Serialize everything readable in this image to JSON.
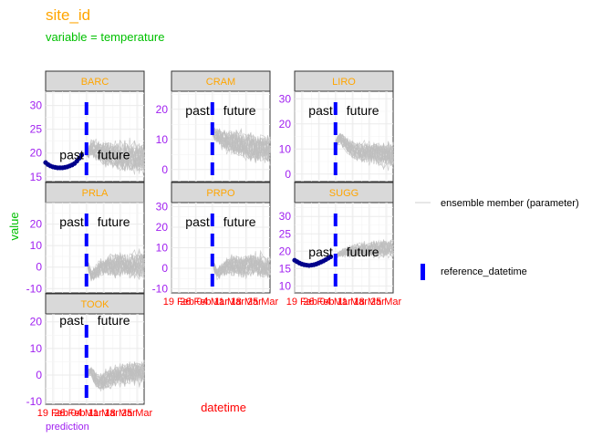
{
  "chart_data": {
    "type": "line",
    "title": "site_id",
    "subtitle": "variable = temperature",
    "xlabel": "datetime",
    "ylabel": "value",
    "caption": "prediction",
    "x_ticks": [
      "19 Feb",
      "26 Feb",
      "04 Mar",
      "11 Mar",
      "18 Mar",
      "25 Mar"
    ],
    "x_range": [
      "2024-02-16",
      "2024-03-28"
    ],
    "reference_datetime": "2024-03-04",
    "annotations": {
      "past": "past",
      "future": "future"
    },
    "colors": {
      "title": "#ffa500",
      "subtitle": "#00c000",
      "strip_text": "#ffa500",
      "y_tick": "#a020f0",
      "x_tick": "#ff0000",
      "ensemble": "#bfbfbf",
      "observation": "#00008b",
      "reference": "#0000ff"
    },
    "legend": {
      "placement": "right",
      "entries": [
        {
          "label": "ensemble member (parameter)",
          "kind": "line",
          "color": "#bfbfbf"
        },
        {
          "label": "reference_datetime",
          "kind": "dashed-bar",
          "color": "#0000ff"
        }
      ]
    },
    "panels": [
      {
        "site": "BARC",
        "ylim": [
          14,
          33
        ],
        "yticks": [
          15,
          20,
          25,
          30
        ],
        "observed": [
          [
            0,
            18.0
          ],
          [
            1,
            17.6
          ],
          [
            2,
            17.3
          ],
          [
            3,
            17.1
          ],
          [
            4,
            17.0
          ],
          [
            5,
            16.9
          ],
          [
            6,
            16.9
          ],
          [
            7,
            16.9
          ],
          [
            8,
            17.0
          ],
          [
            9,
            17.1
          ],
          [
            10,
            17.3
          ],
          [
            11,
            17.5
          ],
          [
            12,
            17.8
          ],
          [
            13,
            18.3
          ],
          [
            14,
            18.9
          ],
          [
            15,
            19.6
          ]
        ],
        "forecast": {
          "start": 19.5,
          "mean": [
            19.5,
            21.2,
            20.6,
            20.1,
            19.8,
            19.6,
            19.4,
            19.3,
            19.2,
            19.1,
            19.0,
            19.0,
            18.9
          ],
          "spread": [
            0.5,
            1.8,
            2.4,
            2.8,
            3.0,
            3.2,
            3.4,
            3.5,
            3.6,
            3.6,
            3.7,
            3.7,
            3.8
          ]
        }
      },
      {
        "site": "CRAM",
        "ylim": [
          -4,
          26
        ],
        "yticks": [
          0,
          10,
          20
        ],
        "observed": [],
        "forecast": {
          "start": 12,
          "mean": [
            12,
            11.5,
            10.5,
            9.5,
            9.0,
            8.5,
            8.0,
            7.8,
            7.5,
            7.5,
            7.2,
            7.0,
            6.8
          ],
          "spread": [
            1.0,
            2.5,
            3.5,
            4.0,
            4.5,
            4.8,
            5.0,
            5.2,
            5.3,
            5.4,
            5.5,
            5.5,
            5.6
          ]
        }
      },
      {
        "site": "LIRO",
        "ylim": [
          -3,
          33
        ],
        "yticks": [
          0,
          10,
          20,
          30
        ],
        "observed": [],
        "forecast": {
          "start": 13,
          "mean": [
            13,
            14,
            12,
            10.5,
            9.5,
            9,
            8.5,
            8.2,
            8,
            7.8,
            7.6,
            7.5,
            7.4
          ],
          "spread": [
            1.0,
            2.5,
            3.5,
            4.0,
            4.5,
            4.8,
            5.0,
            5.2,
            5.3,
            5.4,
            5.5,
            5.5,
            5.6
          ]
        }
      },
      {
        "site": "PRLA",
        "ylim": [
          -12,
          30
        ],
        "yticks": [
          -10,
          0,
          10,
          20
        ],
        "observed": [],
        "forecast": {
          "start": 3,
          "mean": [
            3,
            -4,
            -2,
            0,
            0.5,
            1,
            0.8,
            1,
            1.2,
            1,
            1,
            0.8,
            1
          ],
          "spread": [
            1.0,
            3.0,
            4.0,
            5.0,
            5.5,
            6.0,
            6.2,
            6.4,
            6.5,
            6.6,
            6.7,
            6.8,
            6.8
          ]
        }
      },
      {
        "site": "PRPO",
        "ylim": [
          -12,
          32
        ],
        "yticks": [
          -10,
          0,
          10,
          20,
          30
        ],
        "observed": [],
        "forecast": {
          "start": 3,
          "mean": [
            3,
            -3,
            -1,
            0,
            1,
            1,
            0.5,
            1,
            1.2,
            1,
            1,
            0.8,
            1
          ],
          "spread": [
            1.0,
            3.0,
            4.0,
            5.0,
            5.5,
            6.0,
            6.2,
            6.4,
            6.5,
            6.6,
            6.7,
            6.8,
            6.8
          ]
        }
      },
      {
        "site": "SUGG",
        "ylim": [
          8,
          34
        ],
        "yticks": [
          10,
          15,
          20,
          25,
          30
        ],
        "observed": [
          [
            0,
            17.4
          ],
          [
            1,
            17.0
          ],
          [
            2,
            16.6
          ],
          [
            3,
            16.3
          ],
          [
            4,
            16.1
          ],
          [
            5,
            16.0
          ],
          [
            6,
            15.9
          ],
          [
            7,
            16.0
          ],
          [
            8,
            16.1
          ],
          [
            9,
            16.3
          ],
          [
            10,
            16.6
          ],
          [
            11,
            16.9
          ],
          [
            12,
            17.2
          ],
          [
            13,
            17.6
          ],
          [
            14,
            18.0
          ],
          [
            15,
            18.4
          ]
        ],
        "forecast": {
          "start": 18.5,
          "mean": [
            18.5,
            19.3,
            19.8,
            20.0,
            20.3,
            20.5,
            20.6,
            20.7,
            20.8,
            20.8,
            20.9,
            20.9,
            21.0
          ],
          "spread": [
            0.5,
            1.0,
            1.5,
            1.8,
            2.0,
            2.2,
            2.4,
            2.5,
            2.6,
            2.7,
            2.8,
            2.8,
            2.9
          ]
        }
      },
      {
        "site": "TOOK",
        "ylim": [
          -11,
          23
        ],
        "yticks": [
          -10,
          0,
          10,
          20
        ],
        "observed": [],
        "forecast": {
          "start": 0,
          "mean": [
            0,
            1.5,
            -2,
            -3,
            -2,
            -1,
            0,
            0.5,
            0.5,
            1,
            1,
            1,
            1.2
          ],
          "spread": [
            0.5,
            2.0,
            3.0,
            3.5,
            4.0,
            4.2,
            4.4,
            4.5,
            4.6,
            4.7,
            4.8,
            4.8,
            4.9
          ]
        }
      }
    ]
  }
}
